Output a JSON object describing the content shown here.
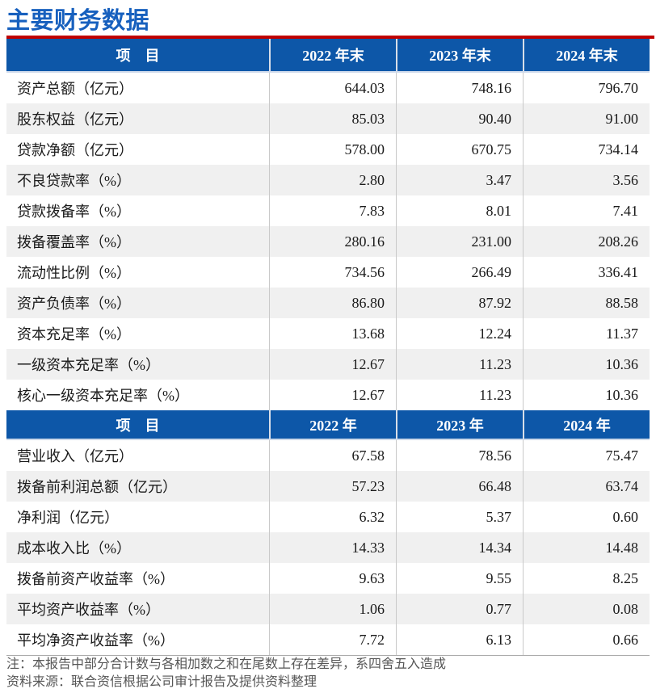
{
  "page": {
    "title": "主要财务数据",
    "footnotes": [
      "注：本报告中部分合计数与各相加数之和在尾数上存在差异，系四舍五入造成",
      "资料来源：联合资信根据公司审计报告及提供资料整理"
    ]
  },
  "colors": {
    "title_blue": "#1760BE",
    "header_blue": "#0D57A8",
    "rule_red": "#C00000",
    "stripe_gray": "#F0F0F0",
    "separator_gray": "#C9C9C9"
  },
  "table": {
    "sections": [
      {
        "header": {
          "item_label": "项　目",
          "columns": [
            "2022 年末",
            "2023 年末",
            "2024 年末"
          ]
        },
        "rows": [
          {
            "label": "资产总额（亿元）",
            "values": [
              "644.03",
              "748.16",
              "796.70"
            ]
          },
          {
            "label": "股东权益（亿元）",
            "values": [
              "85.03",
              "90.40",
              "91.00"
            ]
          },
          {
            "label": "贷款净额（亿元）",
            "values": [
              "578.00",
              "670.75",
              "734.14"
            ]
          },
          {
            "label": "不良贷款率（%）",
            "values": [
              "2.80",
              "3.47",
              "3.56"
            ]
          },
          {
            "label": "贷款拨备率（%）",
            "values": [
              "7.83",
              "8.01",
              "7.41"
            ]
          },
          {
            "label": "拨备覆盖率（%）",
            "values": [
              "280.16",
              "231.00",
              "208.26"
            ]
          },
          {
            "label": "流动性比例（%）",
            "values": [
              "734.56",
              "266.49",
              "336.41"
            ]
          },
          {
            "label": "资产负债率（%）",
            "values": [
              "86.80",
              "87.92",
              "88.58"
            ]
          },
          {
            "label": "资本充足率（%）",
            "values": [
              "13.68",
              "12.24",
              "11.37"
            ]
          },
          {
            "label": "一级资本充足率（%）",
            "values": [
              "12.67",
              "11.23",
              "10.36"
            ]
          },
          {
            "label": "核心一级资本充足率（%）",
            "values": [
              "12.67",
              "11.23",
              "10.36"
            ]
          }
        ]
      },
      {
        "header": {
          "item_label": "项　目",
          "columns": [
            "2022 年",
            "2023 年",
            "2024 年"
          ]
        },
        "rows": [
          {
            "label": "营业收入（亿元）",
            "values": [
              "67.58",
              "78.56",
              "75.47"
            ]
          },
          {
            "label": "拨备前利润总额（亿元）",
            "values": [
              "57.23",
              "66.48",
              "63.74"
            ]
          },
          {
            "label": "净利润（亿元）",
            "values": [
              "6.32",
              "5.37",
              "0.60"
            ]
          },
          {
            "label": "成本收入比（%）",
            "values": [
              "14.33",
              "14.34",
              "14.48"
            ]
          },
          {
            "label": "拨备前资产收益率（%）",
            "values": [
              "9.63",
              "9.55",
              "8.25"
            ]
          },
          {
            "label": "平均资产收益率（%）",
            "values": [
              "1.06",
              "0.77",
              "0.08"
            ]
          },
          {
            "label": "平均净资产收益率（%）",
            "values": [
              "7.72",
              "6.13",
              "0.66"
            ]
          }
        ]
      }
    ]
  }
}
